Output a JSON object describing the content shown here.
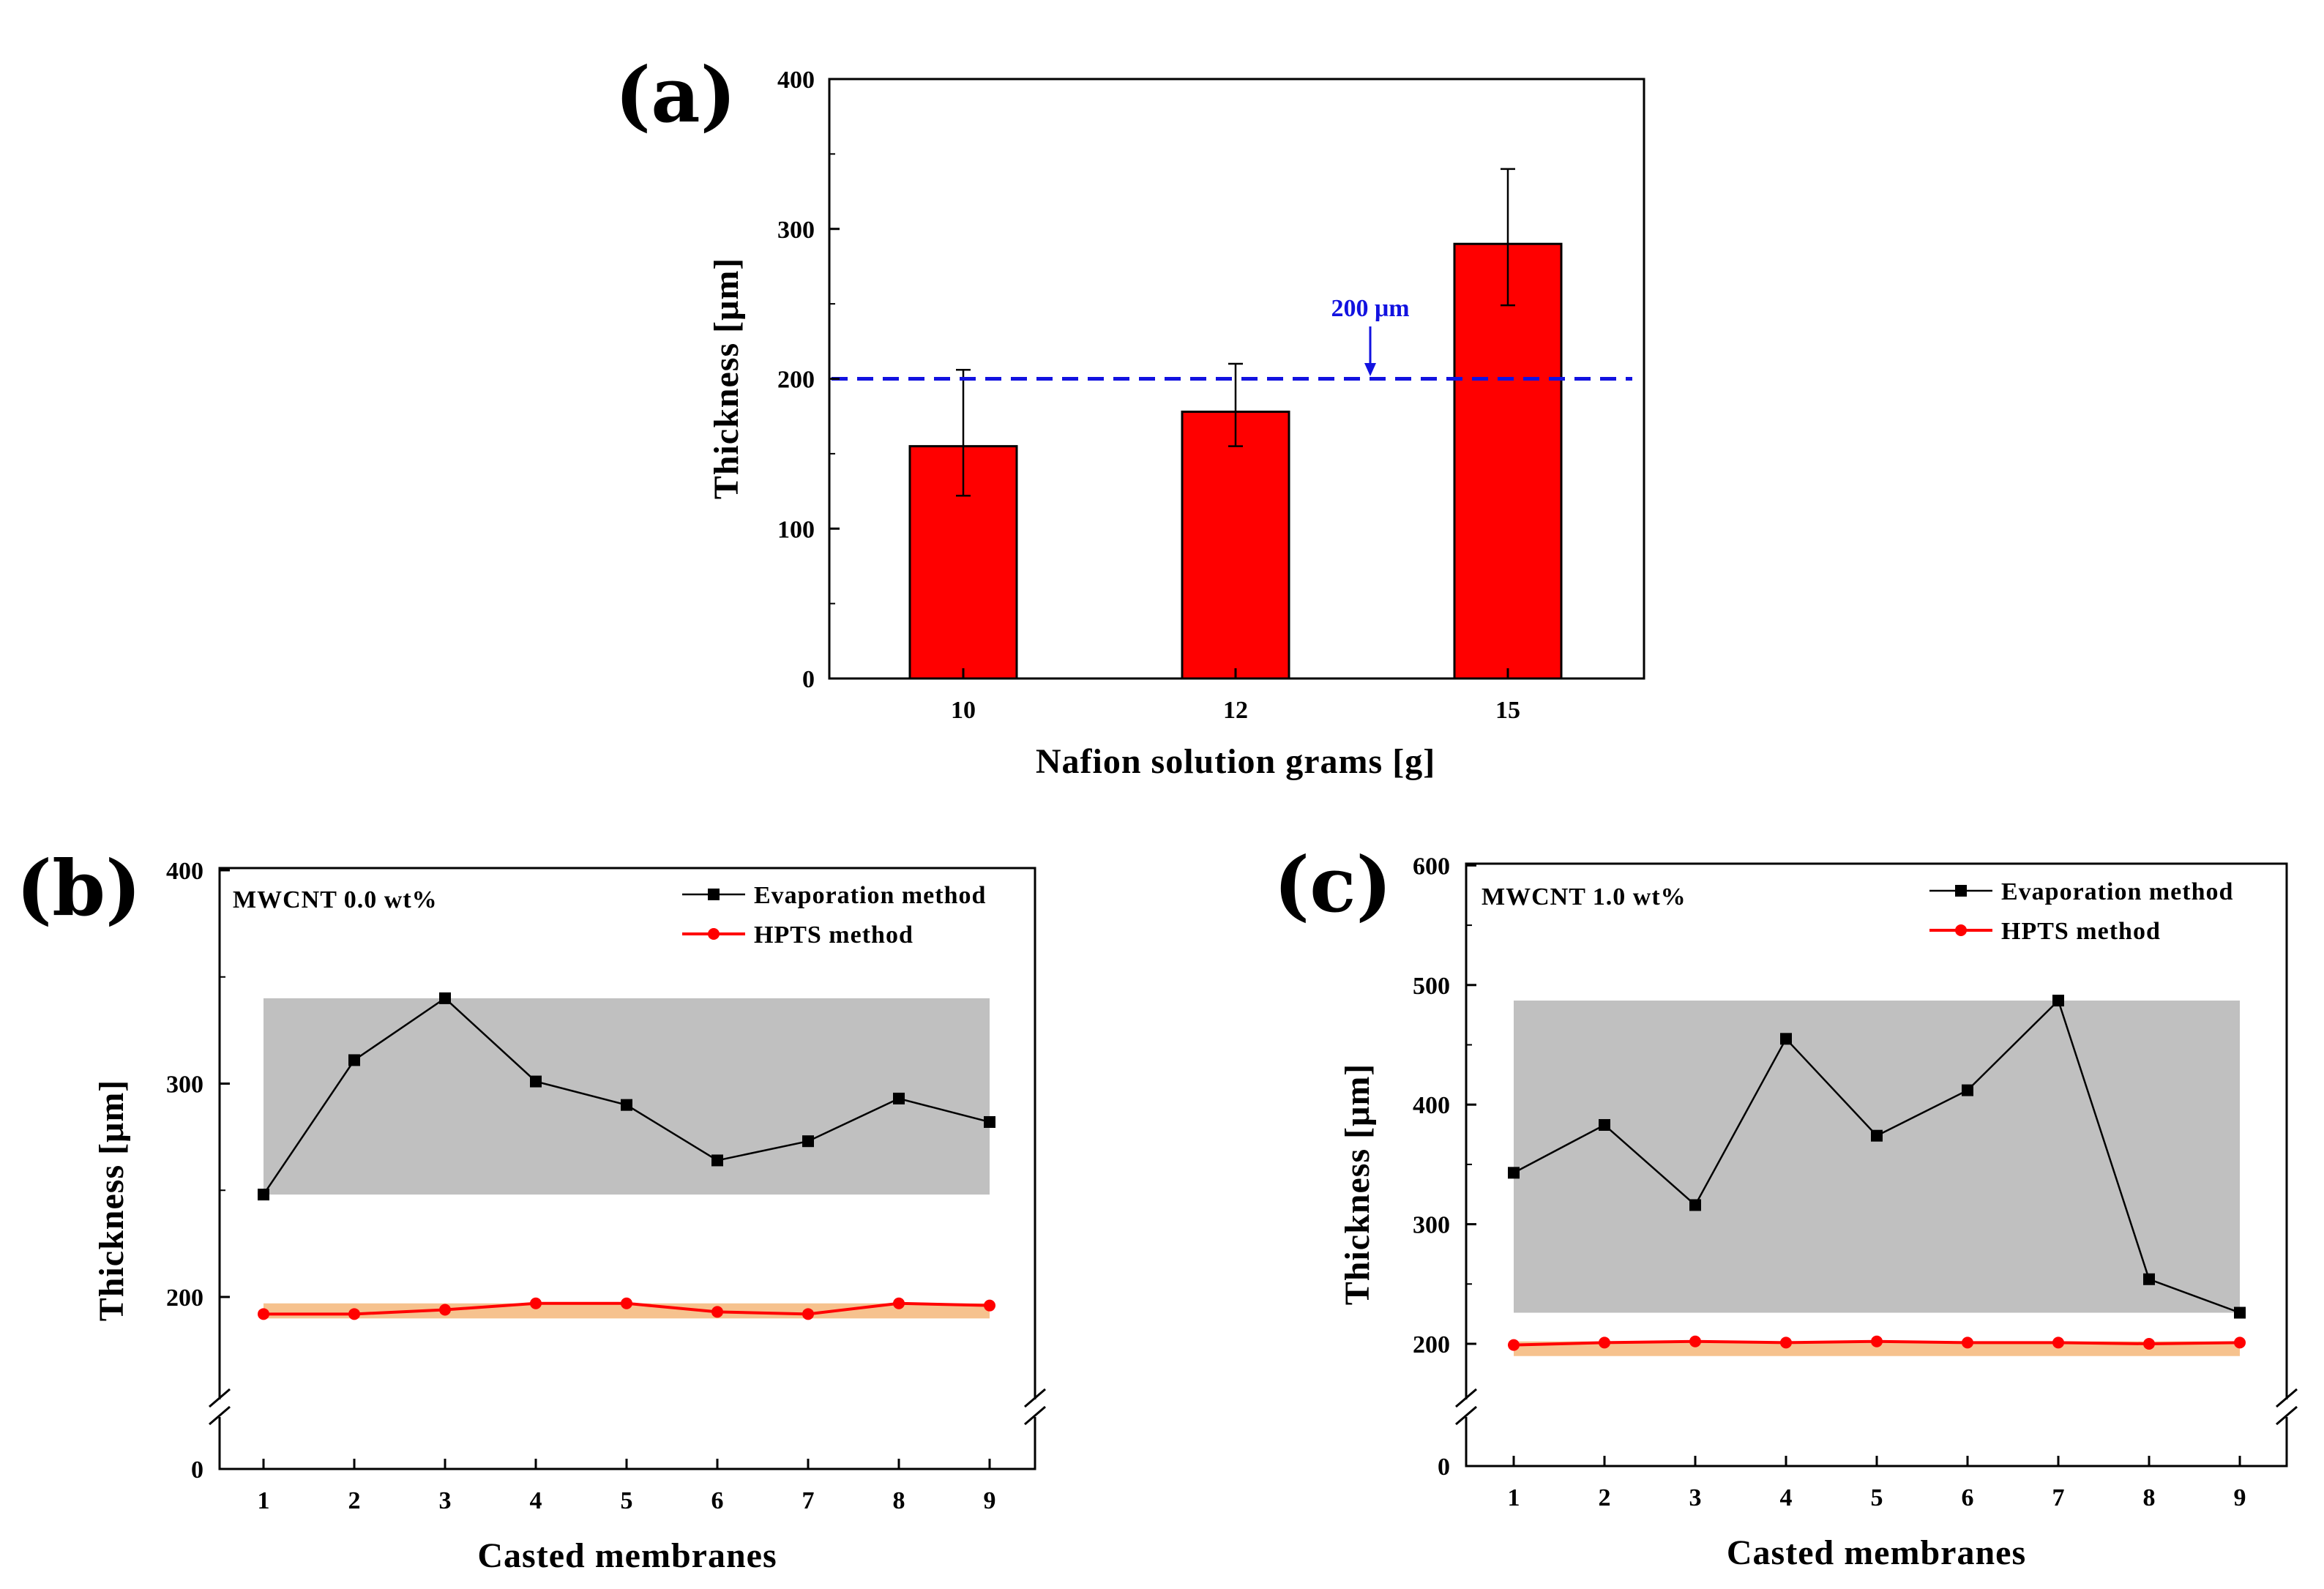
{
  "chart_data": [
    {
      "panel": "(a)",
      "type": "bar",
      "title": "",
      "xlabel": "Nafion solution grams [g]",
      "ylabel": "Thickness [μm]",
      "ylim": [
        0,
        400
      ],
      "yticks": [
        "0",
        "100",
        "200",
        "300",
        "400"
      ],
      "categories": [
        "10",
        "12",
        "15"
      ],
      "values": [
        155,
        178,
        290
      ],
      "errors": [
        [
          122,
          206
        ],
        [
          155,
          210
        ],
        [
          249,
          340
        ]
      ],
      "bar_color": "#ff0000",
      "reference_line": {
        "value": 200,
        "label": "200 μm",
        "color": "#1212e0",
        "style": "dashed"
      }
    },
    {
      "panel": "(b)",
      "type": "line",
      "annotation": "MWCNT 0.0 wt%",
      "xlabel": "Casted membranes",
      "ylabel": "Thickness [μm]",
      "x": [
        1,
        2,
        3,
        4,
        5,
        6,
        7,
        8,
        9
      ],
      "yticks": [
        "0",
        "200",
        "300",
        "400"
      ],
      "axis_break": true,
      "legend_position": "top-right",
      "series": [
        {
          "name": "Evaporation method",
          "color": "#000000",
          "marker": "square",
          "values": [
            248,
            311,
            340,
            301,
            290,
            264,
            273,
            293,
            282
          ],
          "band": [
            248,
            340
          ],
          "band_color": "#c0c0c0"
        },
        {
          "name": "HPTS method",
          "color": "#ff0000",
          "marker": "circle",
          "values": [
            192,
            192,
            194,
            197,
            197,
            193,
            192,
            197,
            196
          ],
          "band": [
            192,
            197
          ],
          "band_color": "#f6c28e"
        }
      ]
    },
    {
      "panel": "(c)",
      "type": "line",
      "annotation": "MWCNT 1.0 wt%",
      "xlabel": "Casted membranes",
      "ylabel": "Thickness [μm]",
      "x": [
        1,
        2,
        3,
        4,
        5,
        6,
        7,
        8,
        9
      ],
      "yticks": [
        "0",
        "200",
        "300",
        "400",
        "500",
        "600"
      ],
      "axis_break": true,
      "legend_position": "top-right",
      "series": [
        {
          "name": "Evaporation method",
          "color": "#000000",
          "marker": "square",
          "values": [
            343,
            383,
            316,
            455,
            374,
            412,
            487,
            254,
            226
          ],
          "band": [
            226,
            487
          ],
          "band_color": "#c0c0c0"
        },
        {
          "name": "HPTS method",
          "color": "#ff0000",
          "marker": "circle",
          "values": [
            199,
            201,
            202,
            201,
            202,
            201,
            201,
            200,
            201
          ],
          "band": [
            199,
            202
          ],
          "band_color": "#f6c28e"
        }
      ]
    }
  ]
}
